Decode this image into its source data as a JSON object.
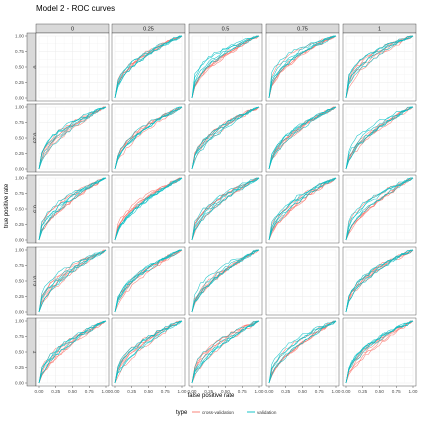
{
  "chart_data": {
    "type": "line",
    "title": "Model 2 - ROC curves",
    "xlabel": "false positive rate",
    "ylabel": "true positive rate",
    "facet_columns": [
      "0",
      "0.25",
      "0.5",
      "0.75",
      "1"
    ],
    "facet_rows": [
      "0",
      "0.25",
      "0.5",
      "0.75",
      "1"
    ],
    "empty_panels": [
      [
        0,
        0
      ],
      [
        3,
        3
      ]
    ],
    "x_ticks": [
      "0.00",
      "0.25",
      "0.50",
      "0.75",
      "1.00"
    ],
    "y_ticks": [
      "0.00",
      "0.25",
      "0.50",
      "0.75",
      "1.00"
    ],
    "xlim": [
      0,
      1
    ],
    "ylim": [
      0,
      1
    ],
    "grid": true,
    "legend": {
      "title": "type",
      "position": "bottom",
      "entries": [
        {
          "label": "cross-validation",
          "color": "#f8766d"
        },
        {
          "label": "validation",
          "color": "#00bfc4"
        }
      ]
    },
    "curves_per_type": 5,
    "panel_style": {
      "background": "#ffffff",
      "strip_fill": "#d9d9d9",
      "grid_color": "#ebebeb"
    }
  }
}
